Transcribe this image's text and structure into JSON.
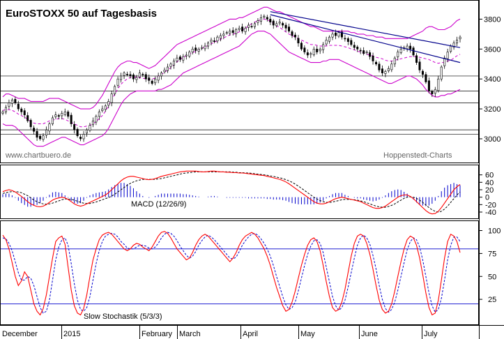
{
  "chart_data": [
    {
      "type": "candlestick",
      "title": "EuroSTOXX 50 auf Tagesbasis",
      "watermark_left": "www.chartbuero.de",
      "watermark_right": "Hoppenstedt-Charts",
      "ylim": [
        2930,
        3900
      ],
      "yticks": [
        3000,
        3200,
        3400,
        3600,
        3800
      ],
      "bollinger_color": "#cc00cc",
      "horizontal_levels": [
        3030,
        3060,
        3240,
        3320,
        3420
      ],
      "close": [
        3180,
        3210,
        3240,
        3260,
        3240,
        3200,
        3180,
        3160,
        3120,
        3080,
        3050,
        3010,
        3000,
        3020,
        3060,
        3100,
        3140,
        3160,
        3150,
        3170,
        3180,
        3150,
        3100,
        3060,
        3020,
        3000,
        3030,
        3060,
        3090,
        3120,
        3150,
        3180,
        3200,
        3220,
        3250,
        3300,
        3350,
        3400,
        3420,
        3440,
        3430,
        3420,
        3400,
        3410,
        3440,
        3430,
        3400,
        3390,
        3370,
        3400,
        3420,
        3440,
        3460,
        3480,
        3500,
        3520,
        3540,
        3530,
        3550,
        3560,
        3580,
        3600,
        3590,
        3600,
        3610,
        3620,
        3640,
        3660,
        3650,
        3680,
        3690,
        3700,
        3710,
        3720,
        3710,
        3730,
        3740,
        3720,
        3740,
        3760,
        3750,
        3770,
        3790,
        3810,
        3820,
        3800,
        3780,
        3760,
        3770,
        3780,
        3760,
        3740,
        3720,
        3690,
        3680,
        3640,
        3600,
        3580,
        3560,
        3570,
        3600,
        3580,
        3600,
        3630,
        3660,
        3680,
        3700,
        3690,
        3710,
        3680,
        3670,
        3650,
        3630,
        3610,
        3600,
        3590,
        3570,
        3580,
        3550,
        3520,
        3500,
        3460,
        3440,
        3450,
        3470,
        3500,
        3540,
        3580,
        3600,
        3610,
        3620,
        3600,
        3560,
        3510,
        3460,
        3430,
        3380,
        3320,
        3300,
        3330,
        3400,
        3480,
        3540,
        3580,
        3620,
        3640,
        3660,
        3680
      ],
      "upper_band": [
        3280,
        3300,
        3300,
        3290,
        3280,
        3270,
        3270,
        3270,
        3260,
        3250,
        3250,
        3250,
        3250,
        3250,
        3260,
        3270,
        3270,
        3270,
        3270,
        3260,
        3250,
        3240,
        3230,
        3220,
        3210,
        3200,
        3200,
        3200,
        3200,
        3210,
        3230,
        3260,
        3290,
        3330,
        3370,
        3410,
        3450,
        3480,
        3500,
        3510,
        3520,
        3520,
        3510,
        3510,
        3500,
        3490,
        3480,
        3470,
        3480,
        3490,
        3510,
        3530,
        3550,
        3570,
        3590,
        3610,
        3630,
        3640,
        3650,
        3660,
        3670,
        3680,
        3690,
        3700,
        3710,
        3720,
        3730,
        3740,
        3750,
        3760,
        3770,
        3780,
        3790,
        3800,
        3800,
        3800,
        3810,
        3810,
        3820,
        3830,
        3840,
        3850,
        3860,
        3870,
        3880,
        3880,
        3870,
        3860,
        3850,
        3850,
        3840,
        3830,
        3820,
        3810,
        3800,
        3790,
        3780,
        3770,
        3760,
        3750,
        3750,
        3740,
        3730,
        3720,
        3720,
        3720,
        3720,
        3720,
        3720,
        3720,
        3720,
        3720,
        3710,
        3710,
        3700,
        3700,
        3700,
        3690,
        3690,
        3690,
        3680,
        3680,
        3680,
        3670,
        3670,
        3670,
        3670,
        3670,
        3670,
        3670,
        3670,
        3680,
        3690,
        3700,
        3710,
        3720,
        3740,
        3750,
        3750,
        3740,
        3730,
        3730,
        3730,
        3740,
        3750,
        3770,
        3790,
        3800
      ],
      "lower_band": [
        3100,
        3090,
        3090,
        3090,
        3080,
        3060,
        3040,
        3020,
        3000,
        2980,
        2960,
        2950,
        2950,
        2950,
        2960,
        2970,
        2980,
        2990,
        3000,
        3010,
        3010,
        3000,
        2990,
        2980,
        2970,
        2960,
        2960,
        2970,
        2980,
        2990,
        3000,
        3010,
        3020,
        3040,
        3070,
        3110,
        3150,
        3190,
        3230,
        3260,
        3280,
        3300,
        3310,
        3320,
        3320,
        3320,
        3320,
        3320,
        3320,
        3320,
        3330,
        3330,
        3340,
        3350,
        3360,
        3380,
        3400,
        3420,
        3440,
        3450,
        3460,
        3470,
        3480,
        3490,
        3500,
        3510,
        3520,
        3530,
        3540,
        3550,
        3560,
        3570,
        3580,
        3590,
        3600,
        3610,
        3620,
        3640,
        3660,
        3680,
        3700,
        3710,
        3720,
        3720,
        3720,
        3710,
        3700,
        3680,
        3660,
        3640,
        3620,
        3600,
        3580,
        3570,
        3560,
        3550,
        3540,
        3530,
        3520,
        3510,
        3510,
        3510,
        3510,
        3520,
        3520,
        3530,
        3530,
        3530,
        3530,
        3520,
        3510,
        3500,
        3490,
        3480,
        3470,
        3460,
        3450,
        3440,
        3430,
        3420,
        3410,
        3400,
        3390,
        3380,
        3370,
        3370,
        3380,
        3390,
        3400,
        3410,
        3420,
        3420,
        3410,
        3400,
        3380,
        3360,
        3330,
        3310,
        3290,
        3280,
        3280,
        3290,
        3290,
        3300,
        3300,
        3310,
        3320,
        3330
      ],
      "months": [
        "December",
        "2015",
        "February",
        "March",
        "April",
        "May",
        "June",
        "July"
      ]
    },
    {
      "type": "line",
      "label": "MACD (12/26/9)",
      "ylim": [
        -55,
        80
      ],
      "yticks": [
        60,
        40,
        20,
        0,
        -20,
        -40
      ],
      "macd_color": "#ff0000",
      "signal_color": "#000000",
      "histogram_color": "#0000cc",
      "macd": [
        15,
        18,
        20,
        18,
        14,
        8,
        2,
        -5,
        -12,
        -18,
        -22,
        -25,
        -26,
        -24,
        -20,
        -14,
        -8,
        -4,
        -2,
        0,
        -2,
        -6,
        -12,
        -18,
        -22,
        -24,
        -22,
        -18,
        -14,
        -10,
        -6,
        -2,
        2,
        6,
        12,
        20,
        28,
        36,
        44,
        50,
        54,
        56,
        56,
        54,
        52,
        50,
        48,
        47,
        48,
        50,
        53,
        56,
        58,
        60,
        62,
        64,
        66,
        68,
        69,
        70,
        70,
        70,
        70,
        69,
        68,
        68,
        69,
        70,
        70,
        69,
        68,
        68,
        67,
        67,
        66,
        66,
        65,
        65,
        64,
        63,
        62,
        61,
        60,
        59,
        58,
        56,
        54,
        52,
        50,
        48,
        45,
        41,
        36,
        30,
        24,
        18,
        12,
        6,
        0,
        -6,
        -12,
        -16,
        -18,
        -18,
        -16,
        -12,
        -8,
        -4,
        -2,
        0,
        -2,
        -4,
        -6,
        -8,
        -10,
        -12,
        -16,
        -20,
        -24,
        -28,
        -30,
        -30,
        -28,
        -24,
        -18,
        -12,
        -6,
        0,
        4,
        6,
        6,
        2,
        -4,
        -12,
        -20,
        -28,
        -36,
        -42,
        -45,
        -44,
        -38,
        -28,
        -16,
        -4,
        8,
        20,
        28,
        34
      ],
      "signal": [
        10,
        12,
        14,
        15,
        15,
        14,
        12,
        8,
        4,
        -2,
        -8,
        -12,
        -16,
        -18,
        -19,
        -18,
        -16,
        -13,
        -10,
        -7,
        -5,
        -5,
        -6,
        -8,
        -11,
        -14,
        -16,
        -17,
        -17,
        -15,
        -13,
        -10,
        -7,
        -4,
        -1,
        3,
        8,
        14,
        20,
        26,
        32,
        37,
        41,
        44,
        46,
        48,
        48,
        48,
        48,
        48,
        49,
        50,
        52,
        54,
        56,
        58,
        60,
        62,
        64,
        65,
        66,
        67,
        68,
        68,
        68,
        68,
        68,
        68,
        68,
        68,
        68,
        68,
        68,
        68,
        67,
        67,
        66,
        66,
        65,
        65,
        64,
        63,
        62,
        61,
        60,
        59,
        57,
        56,
        54,
        52,
        50,
        47,
        44,
        40,
        35,
        30,
        24,
        18,
        12,
        6,
        0,
        -5,
        -9,
        -12,
        -14,
        -14,
        -13,
        -11,
        -9,
        -7,
        -6,
        -6,
        -6,
        -7,
        -8,
        -10,
        -12,
        -15,
        -18,
        -21,
        -24,
        -26,
        -27,
        -27,
        -25,
        -22,
        -18,
        -13,
        -8,
        -3,
        0,
        1,
        0,
        -3,
        -8,
        -14,
        -21,
        -28,
        -34,
        -38,
        -40,
        -38,
        -32,
        -24,
        -14,
        -4,
        6,
        14
      ],
      "hist_scale": 1.6
    },
    {
      "type": "line",
      "label": "Slow Stochastik (5/3/3)",
      "ylim": [
        0,
        108
      ],
      "yticks": [
        100,
        75,
        50,
        25
      ],
      "reference_lines": [
        80,
        20
      ],
      "k_color": "#ff0000",
      "d_color": "#0000cc",
      "k": [
        95,
        90,
        80,
        65,
        50,
        40,
        45,
        55,
        50,
        35,
        20,
        12,
        8,
        15,
        30,
        50,
        70,
        88,
        92,
        94,
        85,
        60,
        35,
        18,
        10,
        8,
        15,
        30,
        50,
        68,
        80,
        90,
        95,
        97,
        98,
        96,
        92,
        88,
        84,
        80,
        78,
        80,
        84,
        86,
        85,
        82,
        80,
        78,
        82,
        88,
        94,
        98,
        99,
        97,
        92,
        86,
        80,
        76,
        72,
        68,
        70,
        76,
        84,
        90,
        94,
        96,
        94,
        90,
        86,
        82,
        78,
        74,
        70,
        66,
        70,
        76,
        84,
        90,
        94,
        96,
        98,
        96,
        92,
        86,
        80,
        72,
        62,
        50,
        38,
        28,
        18,
        12,
        14,
        22,
        34,
        48,
        62,
        74,
        84,
        90,
        92,
        88,
        78,
        62,
        44,
        28,
        16,
        12,
        14,
        22,
        36,
        54,
        72,
        86,
        94,
        96,
        94,
        86,
        74,
        58,
        40,
        24,
        14,
        10,
        12,
        20,
        34,
        50,
        66,
        80,
        90,
        94,
        92,
        84,
        70,
        52,
        32,
        16,
        8,
        10,
        24,
        46,
        70,
        88,
        96,
        94,
        88,
        76
      ],
      "d": [
        92,
        91,
        86,
        78,
        66,
        54,
        46,
        46,
        50,
        48,
        40,
        28,
        16,
        10,
        12,
        24,
        46,
        68,
        82,
        90,
        92,
        84,
        64,
        42,
        24,
        14,
        12,
        16,
        28,
        46,
        64,
        78,
        88,
        94,
        96,
        97,
        96,
        93,
        88,
        85,
        81,
        80,
        80,
        82,
        84,
        84,
        83,
        81,
        80,
        82,
        86,
        92,
        96,
        98,
        97,
        94,
        89,
        83,
        78,
        73,
        70,
        72,
        77,
        84,
        89,
        93,
        95,
        93,
        90,
        86,
        82,
        78,
        74,
        70,
        69,
        71,
        77,
        84,
        89,
        93,
        96,
        97,
        95,
        91,
        86,
        80,
        72,
        62,
        50,
        39,
        28,
        19,
        14,
        16,
        22,
        34,
        48,
        62,
        74,
        83,
        89,
        90,
        86,
        76,
        60,
        44,
        28,
        18,
        13,
        16,
        24,
        38,
        54,
        70,
        84,
        92,
        95,
        92,
        85,
        73,
        58,
        40,
        25,
        15,
        11,
        14,
        22,
        35,
        50,
        65,
        79,
        88,
        92,
        90,
        82,
        68,
        50,
        32,
        18,
        11,
        14,
        26,
        46,
        68,
        84,
        93,
        93,
        88
      ]
    }
  ]
}
